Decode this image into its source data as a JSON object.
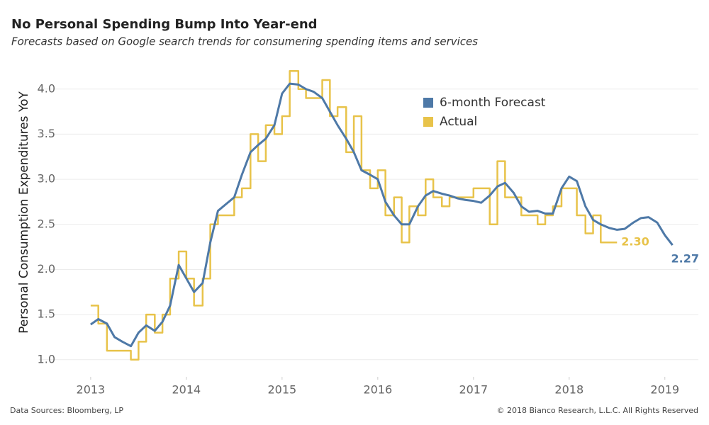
{
  "chart_data": {
    "type": "line",
    "title": "No Personal Spending Bump Into Year-end",
    "subtitle": "Forecasts based on Google search trends for consumering spending items and services",
    "y_label": "Personal Consumption Expenditures YoY",
    "source": "Data Sources: Bloomberg, LP",
    "copyright": "© 2018 Bianco Research, L.L.C. All Rights Reserved",
    "xlim": [
      2012.46,
      2019.35
    ],
    "xticks": [
      2013,
      2014,
      2015,
      2016,
      2017,
      2018,
      2019
    ],
    "ylim": [
      0.81,
      4.32
    ],
    "yticks": [
      {
        "value": 1,
        "label": "1.0"
      },
      1.5,
      {
        "value": 2,
        "label": "2.0"
      },
      2.5,
      {
        "value": 3,
        "label": "3.0"
      },
      3.5,
      {
        "value": 4,
        "label": "4.0"
      }
    ],
    "grid": true,
    "legend": "upper-center",
    "series": [
      {
        "name": "6-month Forecast",
        "color": "#4e79a7",
        "step": false,
        "end_label": "2.27",
        "x": [
          2013.0,
          2013.08,
          2013.17,
          2013.25,
          2013.33,
          2013.42,
          2013.5,
          2013.58,
          2013.67,
          2013.75,
          2013.83,
          2013.92,
          2014.0,
          2014.08,
          2014.17,
          2014.25,
          2014.33,
          2014.42,
          2014.5,
          2014.58,
          2014.67,
          2014.75,
          2014.83,
          2014.92,
          2015.0,
          2015.08,
          2015.17,
          2015.25,
          2015.33,
          2015.42,
          2015.5,
          2015.58,
          2015.67,
          2015.75,
          2015.83,
          2015.92,
          2016.0,
          2016.08,
          2016.17,
          2016.25,
          2016.33,
          2016.42,
          2016.5,
          2016.58,
          2016.67,
          2016.75,
          2016.83,
          2016.92,
          2017.0,
          2017.08,
          2017.17,
          2017.25,
          2017.33,
          2017.42,
          2017.5,
          2017.58,
          2017.67,
          2017.75,
          2017.83,
          2017.92,
          2018.0,
          2018.08,
          2018.17,
          2018.25,
          2018.33,
          2018.42,
          2018.5,
          2018.58,
          2018.67,
          2018.75,
          2018.83,
          2018.92,
          2019.0,
          2019.08
        ],
        "values": [
          1.39,
          1.45,
          1.4,
          1.25,
          1.2,
          1.15,
          1.3,
          1.38,
          1.32,
          1.42,
          1.6,
          2.05,
          1.9,
          1.75,
          1.85,
          2.3,
          2.65,
          2.73,
          2.8,
          3.05,
          3.3,
          3.38,
          3.45,
          3.6,
          3.95,
          4.06,
          4.05,
          4.0,
          3.97,
          3.9,
          3.75,
          3.6,
          3.45,
          3.3,
          3.1,
          3.05,
          3.0,
          2.75,
          2.6,
          2.5,
          2.5,
          2.7,
          2.82,
          2.87,
          2.84,
          2.82,
          2.79,
          2.77,
          2.76,
          2.74,
          2.82,
          2.92,
          2.96,
          2.85,
          2.7,
          2.64,
          2.65,
          2.62,
          2.62,
          2.9,
          3.03,
          2.98,
          2.7,
          2.55,
          2.5,
          2.46,
          2.44,
          2.45,
          2.52,
          2.57,
          2.58,
          2.52,
          2.38,
          2.27
        ]
      },
      {
        "name": "Actual",
        "color": "#e8c34a",
        "step": true,
        "end_label": "2.30",
        "x": [
          2013.0,
          2013.08,
          2013.17,
          2013.25,
          2013.33,
          2013.42,
          2013.5,
          2013.58,
          2013.67,
          2013.75,
          2013.83,
          2013.92,
          2014.0,
          2014.08,
          2014.17,
          2014.25,
          2014.33,
          2014.42,
          2014.5,
          2014.58,
          2014.67,
          2014.75,
          2014.83,
          2014.92,
          2015.0,
          2015.08,
          2015.17,
          2015.25,
          2015.33,
          2015.42,
          2015.5,
          2015.58,
          2015.67,
          2015.75,
          2015.83,
          2015.92,
          2016.0,
          2016.08,
          2016.17,
          2016.25,
          2016.33,
          2016.42,
          2016.5,
          2016.58,
          2016.67,
          2016.75,
          2016.83,
          2016.92,
          2017.0,
          2017.08,
          2017.17,
          2017.25,
          2017.33,
          2017.42,
          2017.5,
          2017.58,
          2017.67,
          2017.75,
          2017.83,
          2017.92,
          2018.0,
          2018.08,
          2018.17,
          2018.25,
          2018.33,
          2018.42,
          2018.5
        ],
        "values": [
          1.6,
          1.4,
          1.1,
          1.1,
          1.1,
          1.0,
          1.2,
          1.5,
          1.3,
          1.5,
          1.9,
          2.2,
          1.9,
          1.6,
          1.9,
          2.5,
          2.6,
          2.6,
          2.8,
          2.9,
          3.5,
          3.2,
          3.6,
          3.5,
          3.7,
          4.2,
          4.0,
          3.9,
          3.9,
          4.1,
          3.7,
          3.8,
          3.3,
          3.7,
          3.1,
          2.9,
          3.1,
          2.6,
          2.8,
          2.3,
          2.7,
          2.6,
          3.0,
          2.8,
          2.7,
          2.8,
          2.8,
          2.8,
          2.9,
          2.9,
          2.5,
          3.2,
          2.8,
          2.8,
          2.6,
          2.6,
          2.5,
          2.6,
          2.7,
          2.9,
          2.9,
          2.6,
          2.4,
          2.6,
          2.3,
          2.3,
          2.3
        ]
      }
    ]
  }
}
